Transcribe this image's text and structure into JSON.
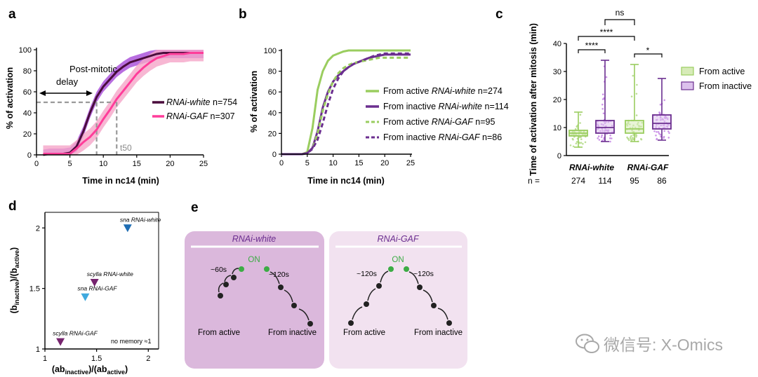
{
  "colors": {
    "white_dark": "#4a0c3c",
    "white_band": "#a64ad8",
    "gaf_main": "#ff3d9a",
    "gaf_band": "#f5a5c8",
    "active_green": "#9acd5f",
    "inactive_purple": "#6b2e8f",
    "box_green_fill": "#d7ebb8",
    "box_purple_fill": "#dcc1ec",
    "panel_e_white_bg": "#dbb8dc",
    "panel_e_gaf_bg": "#f2e2f0",
    "dot_green": "#3cac45",
    "tri_dark_blue": "#1f6db3",
    "tri_light_blue": "#3fa9de",
    "tri_purple": "#76246e"
  },
  "panel_a": {
    "label": "a",
    "annotation": "Post-mitotic",
    "annotation2": "delay",
    "t50_label": "t50",
    "legend": [
      {
        "name_italic": "RNAi-white",
        "n": " n=754"
      },
      {
        "name_italic": "RNAi-GAF",
        "n": " n=307"
      }
    ]
  },
  "panel_b": {
    "label": "b",
    "legend": [
      {
        "prefix": "From active ",
        "name_italic": "RNAi-white",
        "n": " n=274"
      },
      {
        "prefix": "From inactive ",
        "name_italic": "RNAi-white",
        "n": " n=114"
      },
      {
        "prefix": "From active ",
        "name_italic": "RNAi-GAF",
        "n": " n=95"
      },
      {
        "prefix": "From inactive ",
        "name_italic": "RNAi-GAF",
        "n": " n=86"
      }
    ]
  },
  "panel_c": {
    "label": "c",
    "sig_labels": [
      "ns",
      "****",
      "****",
      "*"
    ],
    "group_labels": [
      "RNAi-white",
      "RNAi-GAF"
    ],
    "n_prefix": "n =",
    "n_values": [
      "274",
      "114",
      "95",
      "86"
    ],
    "legend": [
      "From active",
      "From inactive"
    ]
  },
  "panel_d": {
    "label": "d",
    "no_memory": "no memory ≈1"
  },
  "panel_e": {
    "label": "e",
    "left_title": "RNAi-white",
    "right_title": "RNAi-GAF",
    "on": "ON",
    "from_active": "From active",
    "from_inactive": "From inactive",
    "white_times": [
      "~60s",
      "~120s"
    ],
    "gaf_times": [
      "~120s",
      "~120s"
    ]
  },
  "watermark": "微信号: X-Omics",
  "chart_data": [
    {
      "type": "line",
      "panel": "a",
      "xlabel": "Time in nc14 (min)",
      "ylabel": "% of activation",
      "xlim": [
        0,
        25
      ],
      "ylim": [
        0,
        100
      ],
      "xticks": [
        0,
        5,
        10,
        15,
        20,
        25
      ],
      "yticks": [
        0,
        20,
        40,
        60,
        80,
        100
      ],
      "x": [
        1,
        2,
        3,
        4,
        5,
        6,
        7,
        8,
        9,
        10,
        11,
        12,
        13,
        14,
        15,
        16,
        17,
        18,
        19,
        20,
        21,
        22,
        23,
        24,
        25
      ],
      "series": [
        {
          "name": "RNAi-white n=754",
          "values": [
            0,
            1,
            1,
            1,
            2,
            8,
            22,
            40,
            55,
            65,
            72,
            79,
            84,
            88,
            90,
            92,
            94,
            96,
            97,
            97,
            97,
            97,
            97,
            97,
            97
          ],
          "band": 5
        },
        {
          "name": "RNAi-GAF n=307",
          "values": [
            1,
            1,
            1,
            1,
            1,
            6,
            12,
            17,
            24,
            34,
            43,
            53,
            61,
            69,
            77,
            83,
            88,
            92,
            94,
            96,
            96,
            96,
            97,
            97,
            97
          ],
          "band": 8
        }
      ],
      "guides": {
        "level": 50,
        "t50_white": 9,
        "t50_gaf": 12
      }
    },
    {
      "type": "line",
      "panel": "b",
      "xlabel": "Time in nc14 (min)",
      "ylabel": "% of activation",
      "xlim": [
        0,
        25
      ],
      "ylim": [
        0,
        100
      ],
      "xticks": [
        0,
        5,
        10,
        15,
        20,
        25
      ],
      "yticks": [
        0,
        20,
        40,
        60,
        80,
        100
      ],
      "x": [
        0,
        1,
        2,
        3,
        4,
        5,
        6,
        7,
        8,
        9,
        10,
        11,
        12,
        13,
        14,
        15,
        16,
        17,
        18,
        19,
        20,
        21,
        22,
        23,
        24,
        25
      ],
      "series": [
        {
          "name": "From active RNAi-white n=274",
          "style": "solid",
          "values": [
            0,
            0,
            0,
            0,
            0,
            2,
            25,
            62,
            80,
            90,
            95,
            97,
            99,
            100,
            100,
            100,
            100,
            100,
            100,
            100,
            100,
            100,
            100,
            100,
            100,
            100
          ]
        },
        {
          "name": "From inactive RNAi-white n=114",
          "style": "solid",
          "values": [
            0,
            0,
            0,
            0,
            0,
            1,
            6,
            22,
            45,
            60,
            70,
            76,
            80,
            84,
            87,
            89,
            91,
            93,
            94,
            95,
            96,
            96,
            96,
            96,
            96,
            96
          ]
        },
        {
          "name": "From active RNAi-GAF n=95",
          "style": "dashed",
          "values": [
            0,
            0,
            0,
            0,
            0,
            1,
            5,
            20,
            42,
            58,
            70,
            78,
            83,
            86,
            88,
            89,
            90,
            91,
            92,
            93,
            93,
            93,
            93,
            93,
            93,
            93
          ]
        },
        {
          "name": "From inactive RNAi-GAF n=86",
          "style": "dashed",
          "values": [
            0,
            0,
            0,
            0,
            0,
            1,
            5,
            14,
            30,
            48,
            63,
            73,
            80,
            84,
            87,
            89,
            91,
            93,
            95,
            96,
            97,
            97,
            97,
            97,
            97,
            97
          ]
        }
      ]
    },
    {
      "type": "box",
      "panel": "c",
      "ylabel": "Time of activation after mitosis (min)",
      "ylim": [
        0,
        40
      ],
      "yticks": [
        0,
        10,
        20,
        30,
        40
      ],
      "boxes": [
        {
          "group": "RNAi-white",
          "condition": "From active",
          "min": 3,
          "q1": 7,
          "median": 8,
          "q3": 9,
          "max": 15.5
        },
        {
          "group": "RNAi-white",
          "condition": "From inactive",
          "min": 5,
          "q1": 8,
          "median": 10,
          "q3": 12.5,
          "max": 34
        },
        {
          "group": "RNAi-GAF",
          "condition": "From active",
          "min": 5,
          "q1": 8,
          "median": 9.5,
          "q3": 12.5,
          "max": 32.5
        },
        {
          "group": "RNAi-GAF",
          "condition": "From inactive",
          "min": 5.5,
          "q1": 9.5,
          "median": 11.5,
          "q3": 14.5,
          "max": 27.5
        }
      ]
    },
    {
      "type": "scatter",
      "panel": "d",
      "xlabel": "(ab inactive)/(ab active)",
      "ylabel": "(b inactive)/(b active)",
      "xlim": [
        1,
        2.1
      ],
      "ylim": [
        1,
        2.1
      ],
      "xticks": [
        1,
        1.5,
        2
      ],
      "yticks": [
        1,
        1.5,
        2
      ],
      "points": [
        {
          "label": "sna RNAi-white",
          "x": 1.8,
          "y": 2.0,
          "color": "#1f6db3"
        },
        {
          "label": "scylla RNAi-white",
          "x": 1.48,
          "y": 1.55,
          "color": "#76246e"
        },
        {
          "label": "sna RNAi-GAF",
          "x": 1.39,
          "y": 1.43,
          "color": "#3fa9de"
        },
        {
          "label": "scylla RNAi-GAF",
          "x": 1.15,
          "y": 1.06,
          "color": "#76246e"
        }
      ]
    }
  ]
}
